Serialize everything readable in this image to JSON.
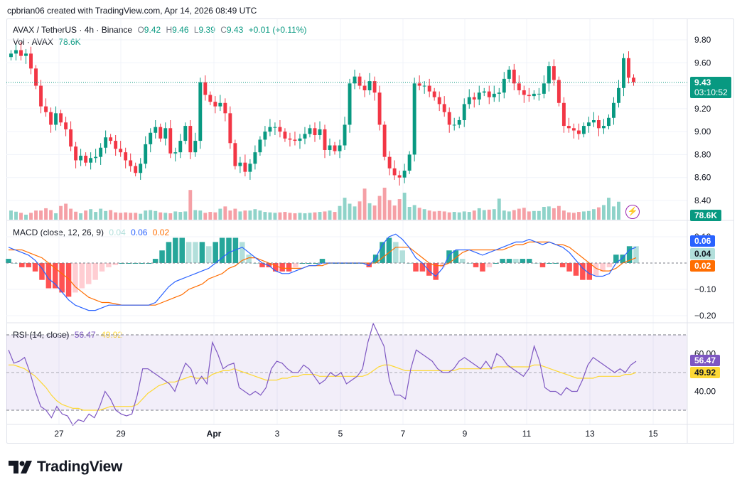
{
  "header": {
    "title": "cpbrian06 created with TradingView.com, Apr 14, 2026 08:49 UTC"
  },
  "main": {
    "symbol": "AVAX / TetherUS · 4h · Binance",
    "open_label": "O",
    "open": "9.42",
    "high_label": "H",
    "high": "9.46",
    "low_label": "L",
    "low": "9.39",
    "close_label": "C",
    "close": "9.43",
    "change": "+0.01 (+0.11%)",
    "vol_label": "Vol · AVAX",
    "vol_value": "78.6K",
    "price_tag": "9.43",
    "countdown": "03:10:52",
    "vol_tag": "78.6K"
  },
  "macd": {
    "label": "MACD (close, 12, 26, 9)",
    "hist": "0.04",
    "macd": "0.06",
    "signal": "0.02",
    "tag_macd": "0.06",
    "tag_hist": "0.04",
    "tag_signal": "0.02"
  },
  "rsi": {
    "label": "RSI (14, close)",
    "value": "56.47",
    "ma": "49.92",
    "tag_value": "56.47",
    "tag_ma": "49.92"
  },
  "axis": {
    "price_ticks": [
      "9.80",
      "9.60",
      "9.40",
      "9.20",
      "9.00",
      "8.80",
      "8.60",
      "8.40"
    ],
    "macd_ticks": [
      "0.10",
      "−0.10",
      "−0.20"
    ],
    "rsi_ticks": [
      "60.00",
      "40.00"
    ],
    "x_ticks": [
      "27",
      "29",
      "Apr",
      "3",
      "5",
      "7",
      "9",
      "11",
      "13",
      "15"
    ]
  },
  "colors": {
    "up": "#089981",
    "down": "#f23645",
    "vol_up": "#8fd3c9",
    "vol_down": "#f5a0a6",
    "macd_line": "#2962ff",
    "signal_line": "#ff6d00",
    "hist_up_strong": "#26a69a",
    "hist_up_weak": "#b2dfdb",
    "hist_down_strong": "#ff5252",
    "hist_down_weak": "#ffcdd2",
    "rsi_line": "#7e57c2",
    "rsi_ma": "#fdd835",
    "rsi_band": "#7e57c2"
  },
  "footer": {
    "brand": "TradingView"
  },
  "chart_data": [
    {
      "type": "candlestick",
      "title": "AVAX / TetherUS · 4h · Binance",
      "ylim": [
        8.3,
        9.9
      ],
      "x_range": [
        "Mar 26",
        "Apr 15"
      ],
      "closes": [
        9.68,
        9.71,
        9.66,
        9.68,
        9.55,
        9.4,
        9.22,
        9.17,
        9.06,
        9.16,
        9.08,
        9.02,
        8.87,
        8.75,
        8.79,
        8.73,
        8.77,
        8.78,
        8.86,
        8.95,
        8.92,
        8.85,
        8.82,
        8.75,
        8.7,
        8.64,
        8.72,
        8.89,
        8.99,
        9.04,
        8.94,
        9.03,
        8.81,
        8.82,
        8.92,
        9.05,
        8.82,
        8.92,
        9.43,
        9.32,
        9.26,
        9.22,
        9.25,
        9.16,
        8.9,
        8.7,
        8.73,
        8.65,
        8.72,
        8.82,
        8.93,
        9.0,
        9.04,
        9.04,
        9.0,
        8.94,
        8.93,
        8.92,
        8.94,
        8.98,
        9.03,
        8.97,
        9.02,
        8.84,
        8.88,
        8.83,
        8.88,
        9.06,
        9.42,
        9.48,
        9.4,
        9.36,
        9.44,
        9.34,
        9.06,
        8.78,
        8.68,
        8.62,
        8.6,
        8.66,
        8.8,
        9.42,
        9.4,
        9.4,
        9.35,
        9.3,
        9.24,
        9.17,
        9.06,
        9.06,
        9.1,
        9.24,
        9.3,
        9.28,
        9.34,
        9.35,
        9.3,
        9.33,
        9.34,
        9.46,
        9.54,
        9.42,
        9.36,
        9.32,
        9.31,
        9.33,
        9.33,
        9.42,
        9.57,
        9.45,
        9.25,
        9.05,
        9.03,
        9.01,
        8.98,
        9.05,
        9.08,
        9.1,
        9.03,
        9.05,
        9.12,
        9.25,
        9.38,
        9.64,
        9.47,
        9.43
      ],
      "last_close": 9.43
    },
    {
      "type": "bar",
      "title": "Vol · AVAX",
      "last": "78.6K",
      "values_k": [
        40,
        35,
        30,
        22,
        30,
        40,
        40,
        50,
        42,
        28,
        60,
        70,
        48,
        35,
        28,
        40,
        46,
        34,
        48,
        38,
        42,
        32,
        30,
        32,
        30,
        30,
        26,
        40,
        42,
        38,
        32,
        30,
        28,
        36,
        34,
        36,
        130,
        42,
        40,
        30,
        34,
        32,
        48,
        58,
        40,
        48,
        36,
        40,
        40,
        46,
        40,
        34,
        32,
        30,
        32,
        34,
        30,
        28,
        30,
        28,
        30,
        32,
        34,
        36,
        40,
        34,
        60,
        96,
        70,
        58,
        80,
        136,
        72,
        62,
        104,
        140,
        86,
        62,
        90,
        118,
        56,
        64,
        52,
        46,
        40,
        36,
        38,
        36,
        32,
        34,
        32,
        36,
        34,
        40,
        50,
        42,
        44,
        46,
        92,
        40,
        36,
        42,
        48,
        52,
        36,
        38,
        38,
        56,
        58,
        50,
        60,
        40,
        32,
        30,
        34,
        36,
        38,
        46,
        54,
        64,
        96,
        58,
        78.6
      ],
      "directions": "mixed"
    },
    {
      "type": "line",
      "title": "MACD (close, 12, 26, 9)",
      "ylim": [
        -0.22,
        0.12
      ],
      "series": [
        {
          "name": "MACD",
          "values": [
            0.06,
            0.05,
            0.04,
            0.03,
            0.01,
            -0.02,
            -0.06,
            -0.08,
            -0.11,
            -0.14,
            -0.16,
            -0.17,
            -0.18,
            -0.18,
            -0.17,
            -0.16,
            -0.16,
            -0.16,
            -0.16,
            -0.16,
            -0.16,
            -0.16,
            -0.15,
            -0.12,
            -0.09,
            -0.07,
            -0.06,
            -0.05,
            -0.04,
            -0.03,
            -0.02,
            0.0,
            0.02,
            0.04,
            0.05,
            0.06,
            0.04,
            0.02,
            0.0,
            -0.01,
            -0.03,
            -0.04,
            -0.04,
            -0.03,
            -0.02,
            -0.01,
            -0.01,
            0.0,
            0.0,
            0.0,
            0.0,
            0.0,
            0.0,
            0.0,
            -0.01,
            0.02,
            0.07,
            0.1,
            0.11,
            0.09,
            0.06,
            0.02,
            0.0,
            -0.03,
            -0.05,
            -0.02,
            0.03,
            0.05,
            0.05,
            0.05,
            0.04,
            0.03,
            0.04,
            0.05,
            0.06,
            0.07,
            0.08,
            0.08,
            0.09,
            0.08,
            0.07,
            0.08,
            0.07,
            0.06,
            0.04,
            0.01,
            -0.02,
            -0.04,
            -0.05,
            -0.05,
            -0.04,
            0.0,
            0.02,
            0.05,
            0.06
          ]
        },
        {
          "name": "Signal",
          "values": [
            0.05,
            0.05,
            0.05,
            0.04,
            0.03,
            0.02,
            0.0,
            -0.02,
            -0.04,
            -0.06,
            -0.09,
            -0.11,
            -0.13,
            -0.14,
            -0.15,
            -0.15,
            -0.155,
            -0.16,
            -0.16,
            -0.16,
            -0.16,
            -0.16,
            -0.16,
            -0.15,
            -0.14,
            -0.13,
            -0.12,
            -0.1,
            -0.09,
            -0.08,
            -0.06,
            -0.05,
            -0.04,
            -0.02,
            -0.01,
            0.01,
            0.02,
            0.02,
            0.01,
            0.0,
            -0.01,
            -0.02,
            -0.02,
            -0.02,
            -0.02,
            -0.01,
            -0.01,
            -0.01,
            0.0,
            0.0,
            0.0,
            0.0,
            0.0,
            0.0,
            0.0,
            0.0,
            0.02,
            0.04,
            0.06,
            0.06,
            0.06,
            0.04,
            0.02,
            0.0,
            -0.01,
            -0.01,
            0.0,
            0.02,
            0.04,
            0.05,
            0.05,
            0.05,
            0.05,
            0.05,
            0.05,
            0.06,
            0.07,
            0.07,
            0.08,
            0.08,
            0.08,
            0.08,
            0.07,
            0.07,
            0.06,
            0.04,
            0.02,
            0.0,
            -0.02,
            -0.03,
            -0.03,
            -0.02,
            0.0,
            0.01,
            0.02
          ]
        }
      ],
      "histogram_last": 0.04
    },
    {
      "type": "line",
      "title": "RSI (14, close)",
      "ylim": [
        20,
        80
      ],
      "bands": [
        30,
        70
      ],
      "series": [
        {
          "name": "RSI",
          "values": [
            62,
            55,
            56,
            58,
            50,
            40,
            32,
            30,
            26,
            32,
            28,
            27,
            22,
            25,
            24,
            28,
            26,
            32,
            40,
            36,
            30,
            28,
            27,
            28,
            38,
            52,
            52,
            50,
            48,
            46,
            44,
            40,
            48,
            55,
            52,
            44,
            48,
            44,
            66,
            60,
            52,
            54,
            55,
            42,
            40,
            38,
            40,
            38,
            42,
            52,
            56,
            55,
            52,
            50,
            50,
            54,
            52,
            48,
            44,
            46,
            50,
            48,
            50,
            44,
            46,
            48,
            52,
            66,
            76,
            70,
            64,
            46,
            38,
            38,
            36,
            52,
            62,
            60,
            58,
            56,
            52,
            50,
            50,
            52,
            56,
            58,
            56,
            54,
            52,
            56,
            52,
            60,
            58,
            54,
            52,
            50,
            48,
            52,
            64,
            56,
            42,
            40,
            40,
            38,
            42,
            40,
            40,
            46,
            54,
            58,
            56,
            54,
            52,
            50,
            52,
            50,
            54,
            56
          ]
        },
        {
          "name": "RSI-based MA",
          "values": [
            54,
            54,
            53,
            52,
            50,
            48,
            45,
            42,
            38,
            35,
            33,
            32,
            31,
            31,
            30,
            30,
            30,
            30,
            31,
            32,
            32,
            32,
            32,
            32,
            33,
            36,
            39,
            41,
            43,
            44,
            45,
            45,
            46,
            47,
            48,
            47,
            47,
            47,
            49,
            50,
            51,
            51,
            52,
            51,
            50,
            49,
            48,
            47,
            46,
            46,
            46,
            47,
            47,
            48,
            48,
            49,
            49,
            49,
            48,
            48,
            48,
            48,
            48,
            48,
            48,
            48,
            48,
            49,
            51,
            53,
            54,
            54,
            53,
            52,
            51,
            51,
            51,
            51,
            51,
            51,
            51,
            51,
            51,
            51,
            52,
            52,
            52,
            52,
            52,
            52,
            52,
            53,
            53,
            53,
            53,
            53,
            53,
            53,
            54,
            54,
            53,
            52,
            51,
            50,
            49,
            48,
            47,
            47,
            47,
            47,
            48,
            48,
            48,
            48,
            48,
            49,
            49,
            50
          ]
        }
      ],
      "last_rsi": 56.47,
      "last_ma": 49.92
    }
  ]
}
